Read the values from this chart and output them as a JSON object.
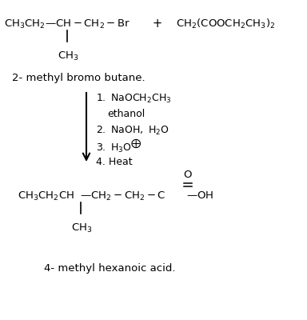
{
  "background": "#ffffff",
  "fs": 9.5,
  "fs_cond": 9.0,
  "reactant1a": "CH$_3$CH$_2$",
  "reactant1b": "—CH−CH$_2$−Br",
  "plus": "+",
  "reactant2": "CH$_2$(COOCH$_2$CH$_3$)$_2$",
  "branch1": "CH$_3$",
  "label1": "2- methyl bromo butane.",
  "cond1": "1. NaOCH$_2$CH$_3$",
  "cond2": "   ethanol",
  "cond3": "2. NaOH, H$_2$O",
  "cond4_pre": "3. H$_3$O",
  "cond5": "4. Heat",
  "prod_a": "CH$_3$CH$_2$CH",
  "prod_b": "—CH$_2$−CH$_2$−C",
  "prod_c": "—OH",
  "prod_O": "O",
  "branch2": "CH$_3$",
  "label2": "4- methyl hexanoic acid."
}
